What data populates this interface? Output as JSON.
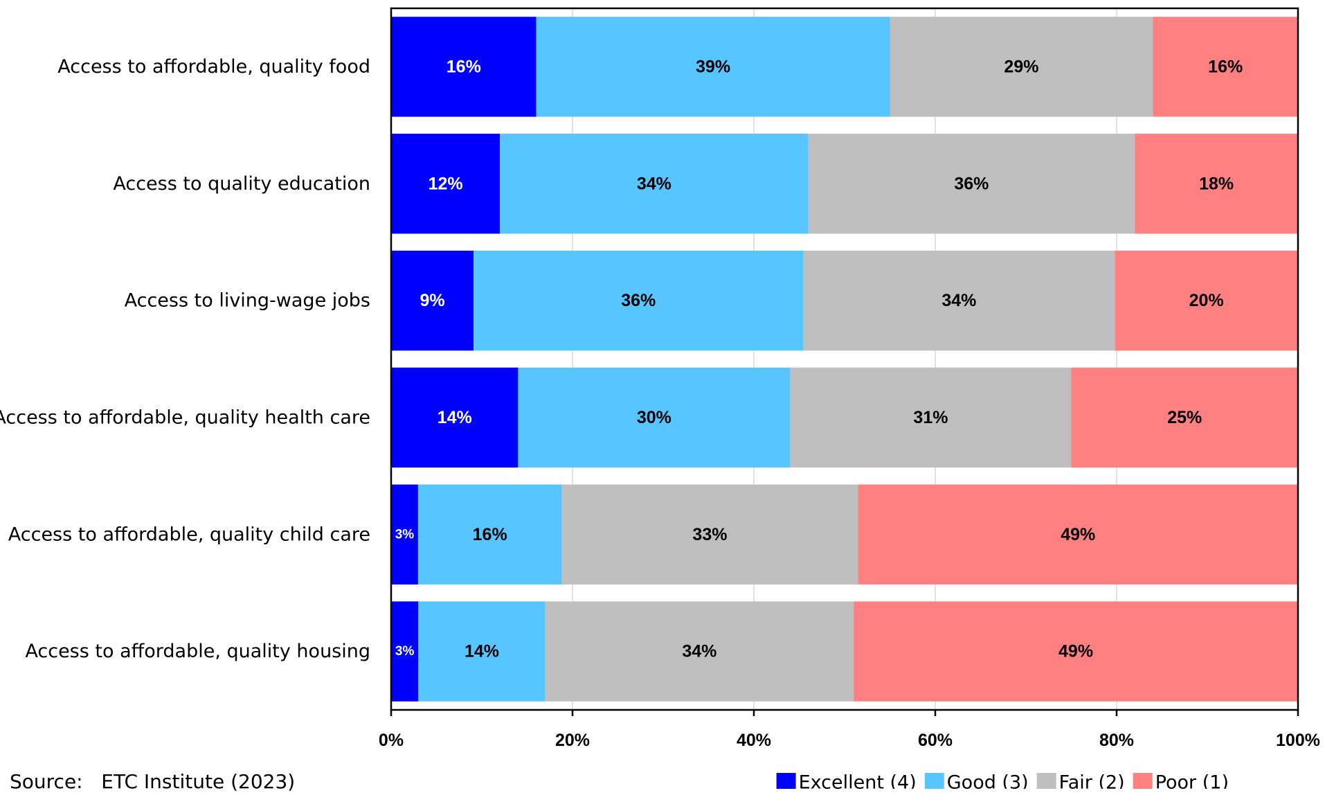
{
  "chart_data": {
    "type": "bar",
    "orientation": "horizontal",
    "stacked": true,
    "categories": [
      "Access to affordable, quality food",
      "Access to quality education",
      "Access to living-wage jobs",
      "Access to affordable, quality health care",
      "Access to affordable, quality child care",
      "Access to affordable, quality housing"
    ],
    "series": [
      {
        "name": "Excellent (4)",
        "color": "#0000FF",
        "label_color": "#FFFFFF",
        "values": [
          16,
          12,
          9,
          14,
          3,
          3
        ],
        "labels": [
          "16%",
          "12%",
          "9%",
          "14%",
          "3%",
          "3%"
        ]
      },
      {
        "name": "Good (3)",
        "color": "#57C5FF",
        "label_color": "#000000",
        "values": [
          39,
          34,
          36,
          30,
          16,
          14
        ],
        "labels": [
          "39%",
          "34%",
          "36%",
          "30%",
          "16%",
          "14%"
        ]
      },
      {
        "name": "Fair (2)",
        "color": "#BFBFBF",
        "label_color": "#000000",
        "values": [
          29,
          36,
          34,
          31,
          33,
          34
        ],
        "labels": [
          "29%",
          "36%",
          "34%",
          "31%",
          "33%",
          "34%"
        ]
      },
      {
        "name": "Poor (1)",
        "color": "#FF8080",
        "label_color": "#000000",
        "values": [
          16,
          18,
          20,
          25,
          49,
          49
        ],
        "labels": [
          "16%",
          "18%",
          "20%",
          "25%",
          "49%",
          "49%"
        ]
      }
    ],
    "xlim": [
      0,
      100
    ],
    "xticks": [
      0,
      20,
      40,
      60,
      80,
      100
    ],
    "xtick_labels": [
      "0%",
      "20%",
      "40%",
      "60%",
      "80%",
      "100%"
    ],
    "grid": true,
    "legend_position": "bottom-right"
  },
  "source_note": "Source:   ETC Institute (2023)"
}
